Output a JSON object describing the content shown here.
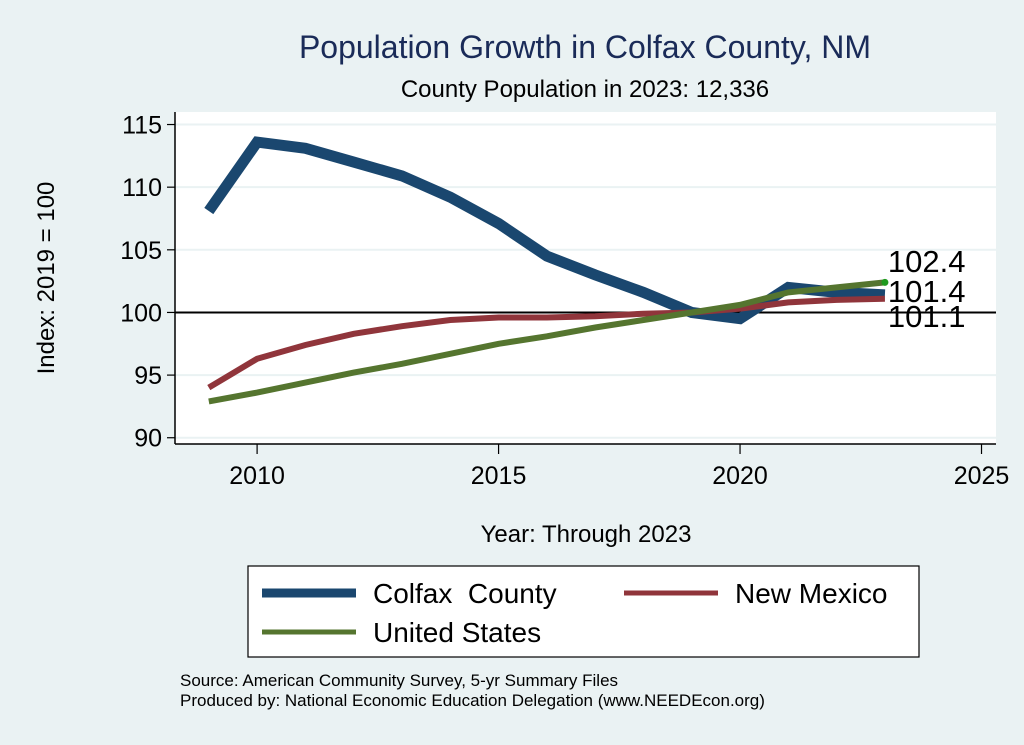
{
  "chart_data": {
    "type": "line",
    "title": "Population Growth in Colfax County, NM",
    "subtitle": "County Population in 2023: 12,336",
    "xlabel": "Year: Through 2023",
    "ylabel": "Index: 2019 = 100",
    "x": [
      2009,
      2010,
      2011,
      2012,
      2013,
      2014,
      2015,
      2016,
      2017,
      2018,
      2019,
      2020,
      2021,
      2022,
      2023
    ],
    "xlim": [
      2008.3,
      2025.3
    ],
    "ylim": [
      89.5,
      116.0
    ],
    "xticks": [
      2010,
      2015,
      2020,
      2025
    ],
    "xtick_labels": [
      "2010",
      "2015",
      "2020",
      "2025"
    ],
    "yticks": [
      90,
      95,
      100,
      105,
      110,
      115
    ],
    "ytick_labels": [
      "90",
      "95",
      "100",
      "105",
      "110",
      "115"
    ],
    "reference_line": 100,
    "grid": true,
    "legend_position": "bottom",
    "series": [
      {
        "name": "Colfax  County",
        "color": "#1a476f",
        "values": [
          108.1,
          113.6,
          113.1,
          112.0,
          110.9,
          109.2,
          107.1,
          104.5,
          103.0,
          101.6,
          100.0,
          99.5,
          102.0,
          101.6,
          101.4
        ],
        "end_label": "101.4"
      },
      {
        "name": "New Mexico",
        "color": "#90353b",
        "values": [
          94.0,
          96.3,
          97.4,
          98.3,
          98.9,
          99.4,
          99.6,
          99.6,
          99.7,
          99.9,
          100.0,
          100.3,
          100.8,
          101.0,
          101.1
        ],
        "end_label": "101.1"
      },
      {
        "name": "United States",
        "color": "#55752f",
        "values": [
          92.9,
          93.6,
          94.4,
          95.2,
          95.9,
          96.7,
          97.5,
          98.1,
          98.8,
          99.4,
          100.0,
          100.6,
          101.6,
          102.0,
          102.4
        ],
        "end_label": "102.4"
      }
    ],
    "notes": [
      "Source: American Community Survey, 5-yr Summary Files",
      "Produced by: National Economic Education Delegation (www.NEEDEcon.org)"
    ]
  }
}
